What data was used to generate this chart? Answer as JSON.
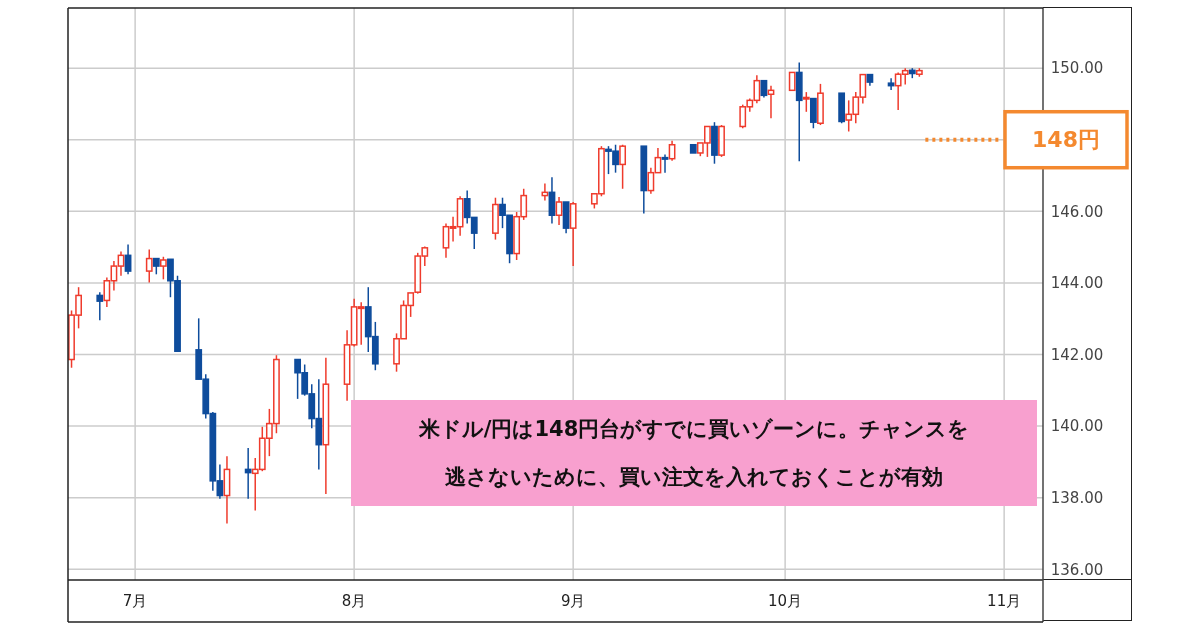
{
  "chart_data": {
    "type": "candlestick",
    "x": [
      "--06-22",
      "--06-23",
      "--06-26",
      "--06-27",
      "--06-28",
      "--06-29",
      "--06-30",
      "--07-03",
      "--07-04",
      "--07-05",
      "--07-06",
      "--07-07",
      "--07-10",
      "--07-11",
      "--07-12",
      "--07-13",
      "--07-14",
      "--07-17",
      "--07-18",
      "--07-19",
      "--07-20",
      "--07-21",
      "--07-24",
      "--07-25",
      "--07-26",
      "--07-27",
      "--07-28",
      "--07-31",
      "--08-01",
      "--08-02",
      "--08-03",
      "--08-04",
      "--08-07",
      "--08-08",
      "--08-09",
      "--08-10",
      "--08-11",
      "--08-14",
      "--08-15",
      "--08-16",
      "--08-17",
      "--08-18",
      "--08-21",
      "--08-22",
      "--08-23",
      "--08-24",
      "--08-25",
      "--08-28",
      "--08-29",
      "--08-30",
      "--08-31",
      "--09-01",
      "--09-04",
      "--09-05",
      "--09-06",
      "--09-07",
      "--09-08",
      "--09-11",
      "--09-12",
      "--09-13",
      "--09-14",
      "--09-15",
      "--09-18",
      "--09-19",
      "--09-20",
      "--09-21",
      "--09-22",
      "--09-25",
      "--09-26",
      "--09-27",
      "--09-28",
      "--09-29",
      "--10-02",
      "--10-03",
      "--10-04",
      "--10-05",
      "--10-06",
      "--10-09",
      "--10-10",
      "--10-11",
      "--10-12",
      "--10-13",
      "--10-16",
      "--10-17",
      "--10-18",
      "--10-19",
      "--10-20"
    ],
    "ohlc": [
      [
        141.86,
        143.23,
        141.63,
        143.1
      ],
      [
        143.1,
        143.88,
        142.73,
        143.65
      ],
      [
        143.65,
        143.74,
        142.96,
        143.49
      ],
      [
        143.51,
        144.15,
        143.33,
        144.06
      ],
      [
        144.06,
        144.61,
        143.79,
        144.47
      ],
      [
        144.47,
        144.88,
        144.2,
        144.77
      ],
      [
        144.77,
        145.07,
        144.24,
        144.33
      ],
      [
        144.33,
        144.93,
        144.01,
        144.68
      ],
      [
        144.68,
        144.68,
        144.24,
        144.47
      ],
      [
        144.47,
        144.73,
        144.1,
        144.64
      ],
      [
        144.66,
        144.66,
        143.6,
        144.06
      ],
      [
        144.06,
        144.2,
        142.07,
        142.09
      ],
      [
        142.13,
        143.01,
        141.31,
        141.31
      ],
      [
        141.31,
        141.45,
        140.21,
        140.35
      ],
      [
        140.35,
        140.39,
        138.19,
        138.47
      ],
      [
        138.47,
        138.93,
        137.97,
        138.06
      ],
      [
        138.06,
        139.16,
        137.28,
        138.79
      ],
      [
        138.79,
        139.39,
        137.97,
        138.7
      ],
      [
        138.68,
        139.11,
        137.64,
        138.79
      ],
      [
        138.79,
        139.98,
        138.74,
        139.66
      ],
      [
        139.66,
        140.48,
        139.16,
        140.07
      ],
      [
        140.07,
        141.98,
        139.8,
        141.86
      ],
      [
        141.86,
        141.86,
        140.76,
        141.49
      ],
      [
        141.49,
        141.72,
        140.85,
        140.9
      ],
      [
        140.9,
        141.17,
        139.94,
        140.21
      ],
      [
        140.21,
        141.31,
        138.79,
        139.48
      ],
      [
        139.48,
        141.91,
        138.1,
        141.17
      ],
      [
        141.17,
        142.68,
        140.71,
        142.27
      ],
      [
        142.27,
        143.56,
        142.22,
        143.33
      ],
      [
        143.31,
        143.46,
        142.27,
        143.33
      ],
      [
        143.33,
        143.88,
        142.07,
        142.5
      ],
      [
        142.5,
        142.91,
        141.56,
        141.74
      ],
      [
        141.74,
        142.59,
        141.52,
        142.44
      ],
      [
        142.44,
        143.51,
        142.44,
        143.37
      ],
      [
        143.37,
        143.72,
        143.05,
        143.72
      ],
      [
        143.74,
        144.84,
        143.7,
        144.75
      ],
      [
        144.75,
        145.02,
        144.47,
        144.98
      ],
      [
        144.98,
        145.66,
        144.7,
        145.57
      ],
      [
        145.55,
        145.85,
        145.16,
        145.57
      ],
      [
        145.57,
        146.42,
        145.32,
        146.35
      ],
      [
        146.35,
        146.58,
        145.66,
        145.83
      ],
      [
        145.83,
        145.83,
        144.95,
        145.39
      ],
      [
        145.39,
        146.38,
        145.21,
        146.19
      ],
      [
        146.19,
        146.38,
        145.53,
        145.89
      ],
      [
        145.89,
        145.89,
        144.55,
        144.82
      ],
      [
        144.82,
        145.98,
        144.64,
        145.85
      ],
      [
        145.85,
        146.63,
        145.76,
        146.44
      ],
      [
        146.44,
        146.78,
        146.3,
        146.53
      ],
      [
        146.53,
        146.95,
        145.66,
        145.89
      ],
      [
        145.89,
        146.4,
        145.62,
        146.26
      ],
      [
        146.26,
        146.26,
        145.39,
        145.53
      ],
      [
        145.53,
        146.26,
        144.47,
        146.21
      ],
      [
        146.21,
        146.49,
        146.08,
        146.49
      ],
      [
        146.49,
        147.82,
        146.42,
        147.75
      ],
      [
        147.73,
        147.82,
        147.04,
        147.68
      ],
      [
        147.68,
        147.86,
        147.08,
        147.31
      ],
      [
        147.31,
        147.86,
        146.63,
        147.82
      ],
      [
        147.82,
        147.82,
        145.94,
        146.58
      ],
      [
        146.58,
        147.22,
        146.49,
        147.08
      ],
      [
        147.08,
        147.77,
        147.08,
        147.5
      ],
      [
        147.5,
        147.59,
        147.08,
        147.47
      ],
      [
        147.47,
        147.97,
        147.41,
        147.86
      ],
      [
        147.86,
        147.86,
        147.63,
        147.63
      ],
      [
        147.63,
        147.91,
        147.54,
        147.91
      ],
      [
        147.91,
        148.37,
        147.52,
        148.37
      ],
      [
        148.37,
        148.49,
        147.33,
        147.57
      ],
      [
        147.57,
        148.41,
        147.52,
        148.37
      ],
      [
        148.37,
        148.98,
        148.32,
        148.92
      ],
      [
        148.92,
        149.15,
        148.78,
        149.1
      ],
      [
        149.1,
        149.8,
        149.02,
        149.65
      ],
      [
        149.65,
        149.65,
        149.18,
        149.24
      ],
      [
        149.27,
        149.51,
        148.6,
        149.38
      ],
      [
        149.38,
        149.88,
        149.38,
        149.88
      ],
      [
        149.88,
        150.16,
        147.4,
        149.1
      ],
      [
        149.14,
        149.33,
        148.78,
        149.18
      ],
      [
        149.15,
        149.15,
        148.32,
        148.49
      ],
      [
        148.46,
        149.56,
        148.41,
        149.3
      ],
      [
        149.3,
        149.3,
        148.46,
        148.51
      ],
      [
        148.55,
        149.1,
        148.23,
        148.71
      ],
      [
        148.71,
        149.33,
        148.46,
        149.19
      ],
      [
        149.19,
        149.82,
        149.01,
        149.82
      ],
      [
        149.82,
        149.82,
        149.51,
        149.61
      ],
      [
        149.58,
        149.72,
        149.39,
        149.51
      ],
      [
        149.51,
        149.88,
        148.83,
        149.83
      ],
      [
        149.83,
        150.0,
        149.54,
        149.93
      ],
      [
        149.94,
        150.0,
        149.72,
        149.85
      ],
      [
        149.83,
        150.0,
        149.76,
        149.93
      ]
    ],
    "colors": [
      "#ef3b2c",
      "#ef3b2c",
      "#0e4c9c",
      "#ef3b2c",
      "#ef3b2c",
      "#ef3b2c",
      "#0e4c9c",
      "#ef3b2c",
      "#0e4c9c",
      "#ef3b2c",
      "#0e4c9c",
      "#0e4c9c",
      "#0e4c9c",
      "#0e4c9c",
      "#0e4c9c",
      "#0e4c9c",
      "#ef3b2c",
      "#0e4c9c",
      "#ef3b2c",
      "#ef3b2c",
      "#ef3b2c",
      "#ef3b2c",
      "#0e4c9c",
      "#0e4c9c",
      "#0e4c9c",
      "#0e4c9c",
      "#ef3b2c",
      "#ef3b2c",
      "#ef3b2c",
      "#ef3b2c",
      "#0e4c9c",
      "#0e4c9c",
      "#ef3b2c",
      "#ef3b2c",
      "#ef3b2c",
      "#ef3b2c",
      "#ef3b2c",
      "#ef3b2c",
      "#ef3b2c",
      "#ef3b2c",
      "#0e4c9c",
      "#0e4c9c",
      "#ef3b2c",
      "#0e4c9c",
      "#0e4c9c",
      "#ef3b2c",
      "#ef3b2c",
      "#ef3b2c",
      "#0e4c9c",
      "#ef3b2c",
      "#0e4c9c",
      "#ef3b2c",
      "#ef3b2c",
      "#ef3b2c",
      "#0e4c9c",
      "#0e4c9c",
      "#ef3b2c",
      "#0e4c9c",
      "#ef3b2c",
      "#ef3b2c",
      "#0e4c9c",
      "#ef3b2c",
      "#0e4c9c",
      "#ef3b2c",
      "#ef3b2c",
      "#0e4c9c",
      "#ef3b2c",
      "#ef3b2c",
      "#ef3b2c",
      "#ef3b2c",
      "#0e4c9c",
      "#ef3b2c",
      "#ef3b2c",
      "#0e4c9c",
      "#ef3b2c",
      "#0e4c9c",
      "#ef3b2c",
      "#0e4c9c",
      "#ef3b2c",
      "#ef3b2c",
      "#ef3b2c",
      "#0e4c9c",
      "#0e4c9c",
      "#ef3b2c",
      "#ef3b2c",
      "#0e4c9c",
      "#ef3b2c"
    ],
    "xlim": [
      "--06-21T12:00",
      "--11-06T12:00"
    ],
    "xticks": [
      {
        "value": "--07-01",
        "label": "7月"
      },
      {
        "value": "--08-01",
        "label": "8月"
      },
      {
        "value": "--09-01",
        "label": "9月"
      },
      {
        "value": "--10-01",
        "label": "10月"
      },
      {
        "value": "--11-01",
        "label": "11月"
      }
    ],
    "ylim": [
      135.7,
      151.68
    ],
    "yticks": [
      {
        "value": 136,
        "label": "136.00"
      },
      {
        "value": 138,
        "label": "138.00"
      },
      {
        "value": 140,
        "label": "140.00"
      },
      {
        "value": 142,
        "label": "142.00"
      },
      {
        "value": 144,
        "label": "144.00"
      },
      {
        "value": 146,
        "label": "146.00"
      },
      {
        "value": 148,
        "label": null
      },
      {
        "value": 150,
        "label": "150.00"
      }
    ],
    "grid": true,
    "ref_lines": [
      {
        "axis": "y",
        "value": 148,
        "label": "148円",
        "color": "#f4892f",
        "line_style": "dotted"
      }
    ],
    "annotations": [
      "米ドル/円は148円台がすでに買いゾーンに。チャンスを逃さないために、買い注文を入れておくことが有効"
    ]
  }
}
